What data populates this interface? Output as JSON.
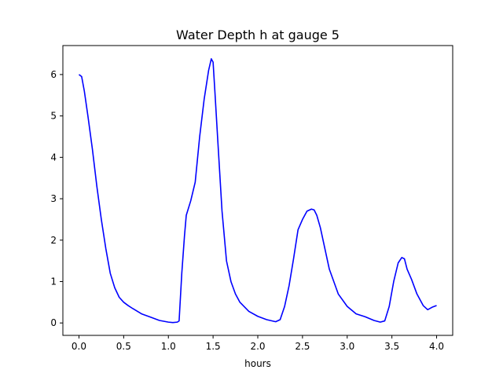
{
  "chart_data": {
    "type": "line",
    "title": "Water Depth h at gauge 5",
    "xlabel": "hours",
    "ylabel": "",
    "xlim": [
      -0.18,
      4.18
    ],
    "ylim": [
      -0.3,
      6.7
    ],
    "xticks": [
      0.0,
      0.5,
      1.0,
      1.5,
      2.0,
      2.5,
      3.0,
      3.5,
      4.0
    ],
    "xtick_labels": [
      "0.0",
      "0.5",
      "1.0",
      "1.5",
      "2.0",
      "2.5",
      "3.0",
      "3.5",
      "4.0"
    ],
    "yticks": [
      0,
      1,
      2,
      3,
      4,
      5,
      6
    ],
    "ytick_labels": [
      "0",
      "1",
      "2",
      "3",
      "4",
      "5",
      "6"
    ],
    "grid": false,
    "line_color": "#0000ff",
    "series": [
      {
        "x": [
          0.0,
          0.03,
          0.06,
          0.1,
          0.15,
          0.2,
          0.25,
          0.3,
          0.35,
          0.4,
          0.45,
          0.5,
          0.55,
          0.6,
          0.7,
          0.8,
          0.9,
          1.0,
          1.05,
          1.1,
          1.12,
          1.15,
          1.18,
          1.2,
          1.25,
          1.3,
          1.35,
          1.4,
          1.45,
          1.48,
          1.5,
          1.52,
          1.55,
          1.6,
          1.65,
          1.7,
          1.75,
          1.8,
          1.9,
          2.0,
          2.1,
          2.2,
          2.25,
          2.3,
          2.35,
          2.4,
          2.45,
          2.5,
          2.55,
          2.6,
          2.63,
          2.66,
          2.7,
          2.75,
          2.8,
          2.9,
          3.0,
          3.1,
          3.2,
          3.3,
          3.37,
          3.42,
          3.47,
          3.52,
          3.57,
          3.61,
          3.64,
          3.67,
          3.72,
          3.78,
          3.85,
          3.9,
          3.95,
          4.0
        ],
        "y": [
          6.0,
          5.95,
          5.6,
          5.0,
          4.2,
          3.3,
          2.5,
          1.8,
          1.2,
          0.85,
          0.62,
          0.5,
          0.42,
          0.35,
          0.22,
          0.14,
          0.06,
          0.02,
          0.01,
          0.02,
          0.05,
          1.2,
          2.1,
          2.6,
          2.95,
          3.4,
          4.5,
          5.4,
          6.1,
          6.38,
          6.3,
          5.6,
          4.5,
          2.7,
          1.5,
          1.0,
          0.7,
          0.5,
          0.28,
          0.16,
          0.08,
          0.03,
          0.08,
          0.4,
          0.9,
          1.55,
          2.25,
          2.5,
          2.7,
          2.75,
          2.73,
          2.6,
          2.3,
          1.8,
          1.3,
          0.7,
          0.4,
          0.22,
          0.15,
          0.06,
          0.02,
          0.05,
          0.4,
          1.0,
          1.45,
          1.58,
          1.55,
          1.3,
          1.05,
          0.7,
          0.42,
          0.32,
          0.38,
          0.42
        ]
      }
    ]
  }
}
